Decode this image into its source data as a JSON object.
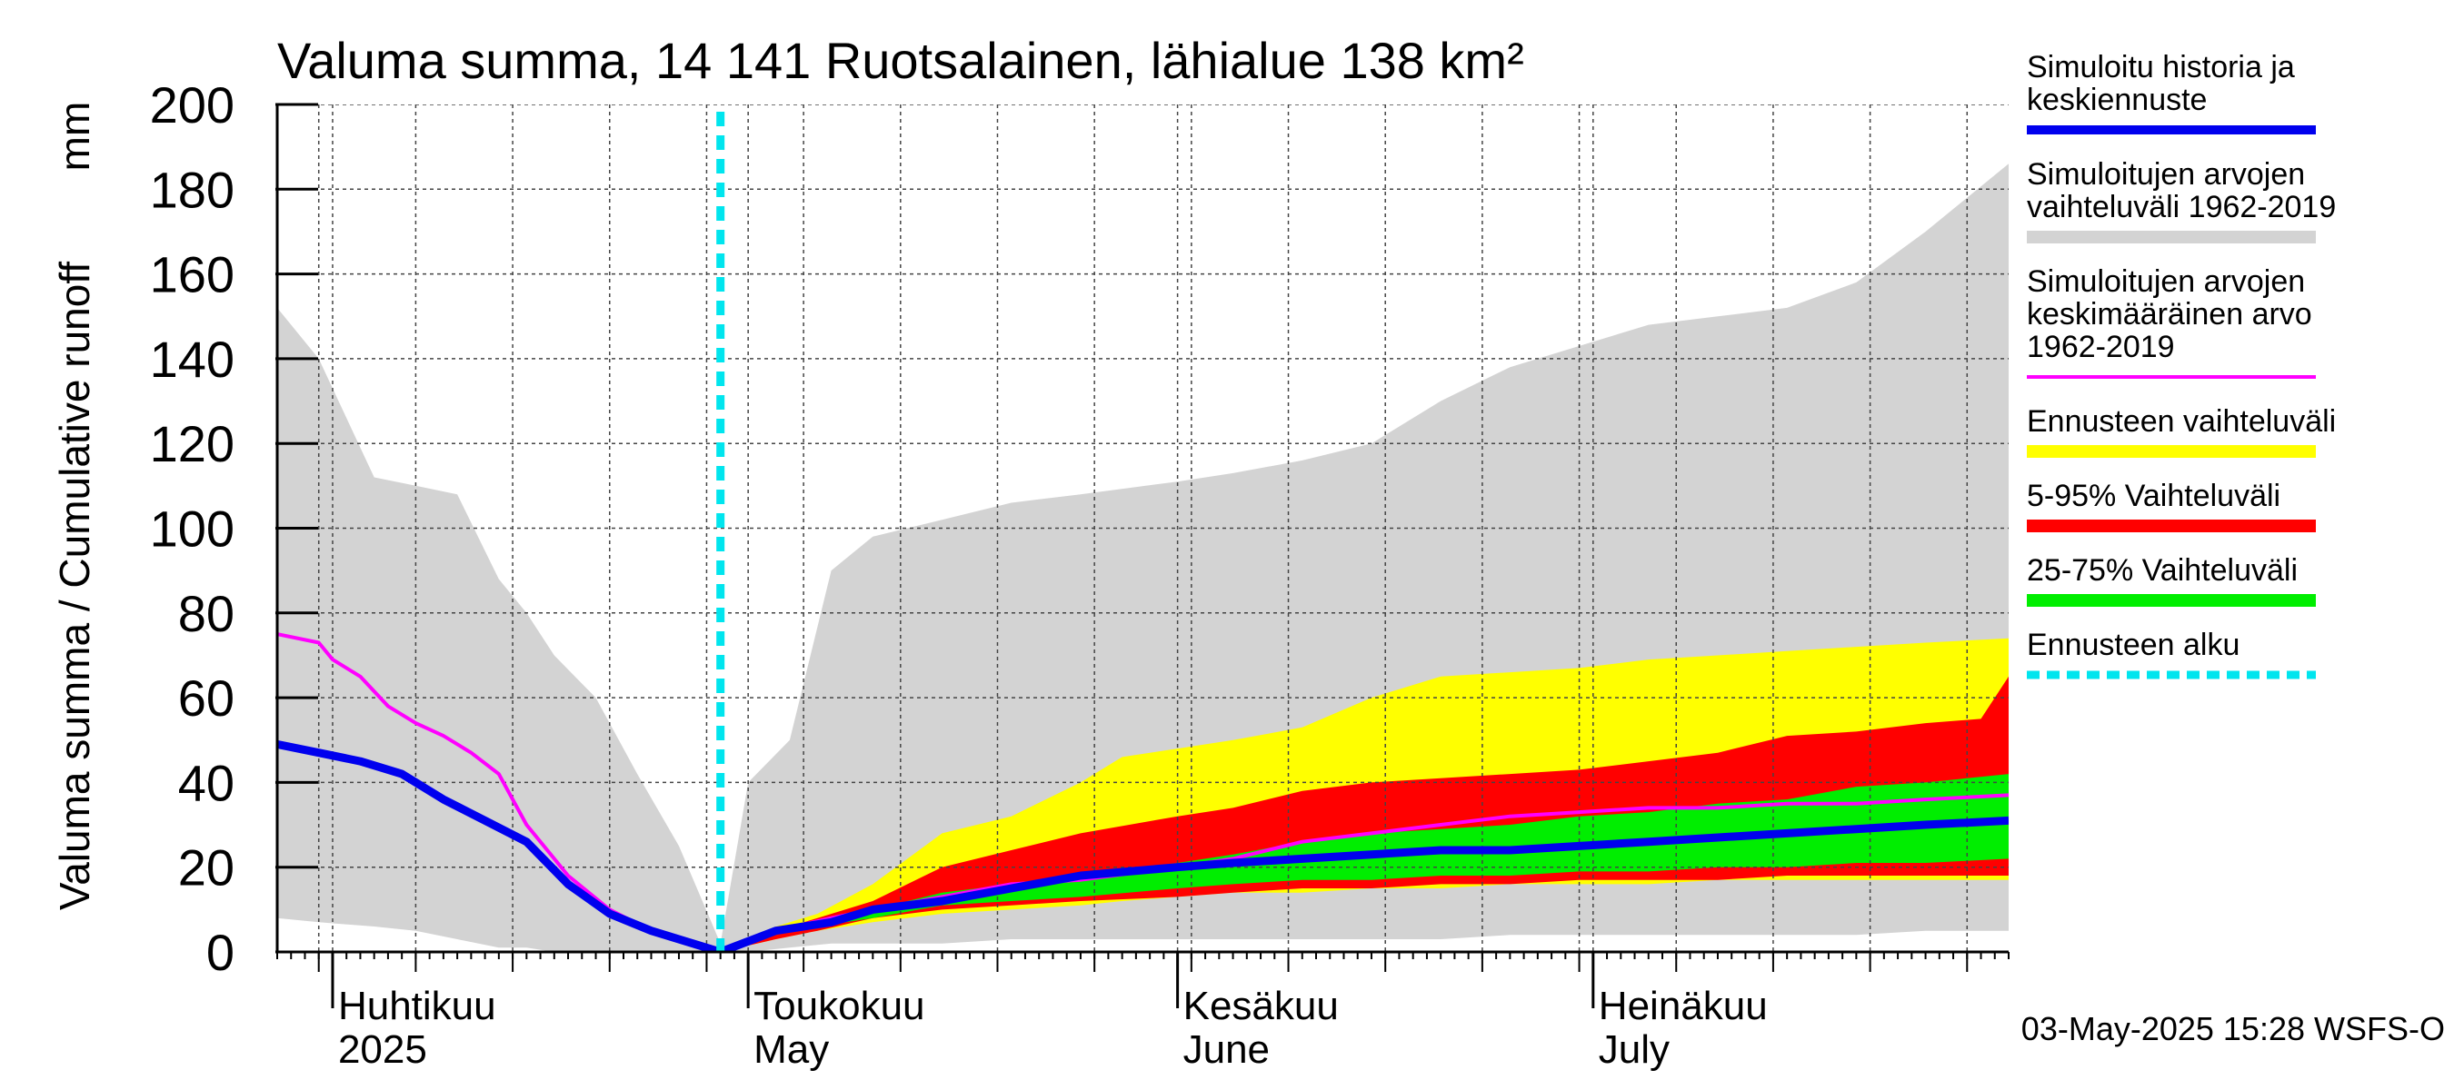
{
  "chart_data": {
    "type": "area",
    "title": "Valuma summa, 14 141 Ruotsalainen, lähialue 138 km²",
    "ylabel_left": "Valuma summa / Cumulative runoff",
    "ylabel_unit": "mm",
    "ylim": [
      0,
      200
    ],
    "yticks": [
      0,
      20,
      40,
      60,
      80,
      100,
      120,
      140,
      160,
      180,
      200
    ],
    "xlim": [
      "2025-03-28",
      "2025-07-31"
    ],
    "month_labels": [
      {
        "date": "2025-04-01",
        "line1": "Huhtikuu",
        "line2": "2025"
      },
      {
        "date": "2025-05-01",
        "line1": "Toukokuu",
        "line2": "May"
      },
      {
        "date": "2025-06-01",
        "line1": "Kesäkuu",
        "line2": "June"
      },
      {
        "date": "2025-07-01",
        "line1": "Heinäkuu",
        "line2": "July"
      }
    ],
    "forecast_start": "2025-04-29",
    "footer": "03-May-2025 15:28 WSFS-O",
    "grid": true,
    "legend_position": "right",
    "legend": [
      {
        "label": "Simuloitu historia ja\nkeskiennuste",
        "color": "#0000ee",
        "style": "thick"
      },
      {
        "label": "Simuloitujen arvojen\nvaihteluväli 1962-2019",
        "color": "#d3d3d3",
        "style": "band"
      },
      {
        "label": "Simuloitujen arvojen\nkeskimääräinen arvo\n   1962-2019",
        "color": "#ff00ff",
        "style": "line"
      },
      {
        "label": "Ennusteen vaihteluväli",
        "color": "#ffff00",
        "style": "band"
      },
      {
        "label": "5-95% Vaihteluväli",
        "color": "#ff0000",
        "style": "band"
      },
      {
        "label": "25-75% Vaihteluväli",
        "color": "#00ee00",
        "style": "band"
      },
      {
        "label": "Ennusteen alku",
        "color": "#00e5ee",
        "style": "dashed"
      }
    ],
    "series": [
      {
        "name": "Simuloitujen arvojen vaihteluväli 1962-2019",
        "kind": "band",
        "color": "#d3d3d3",
        "x": [
          "2025-03-28",
          "2025-03-31",
          "2025-04-04",
          "2025-04-07",
          "2025-04-10",
          "2025-04-13",
          "2025-04-15",
          "2025-04-17",
          "2025-04-20",
          "2025-04-23",
          "2025-04-26",
          "2025-04-29",
          "2025-05-01",
          "2025-05-04",
          "2025-05-07",
          "2025-05-10",
          "2025-05-15",
          "2025-05-20",
          "2025-05-25",
          "2025-06-01",
          "2025-06-05",
          "2025-06-10",
          "2025-06-15",
          "2025-06-20",
          "2025-06-25",
          "2025-06-30",
          "2025-07-05",
          "2025-07-10",
          "2025-07-15",
          "2025-07-20",
          "2025-07-25",
          "2025-07-31"
        ],
        "upper": [
          152,
          140,
          112,
          110,
          108,
          88,
          80,
          70,
          60,
          42,
          25,
          2,
          40,
          50,
          90,
          98,
          102,
          106,
          108,
          111,
          113,
          116,
          120,
          130,
          138,
          143,
          148,
          150,
          152,
          158,
          170,
          186
        ],
        "lower": [
          8,
          7,
          6,
          5,
          3,
          1,
          1,
          0,
          0,
          0,
          0,
          0,
          0,
          1,
          2,
          2,
          2,
          3,
          3,
          3,
          3,
          3,
          3,
          3,
          4,
          4,
          4,
          4,
          4,
          4,
          5,
          5
        ]
      },
      {
        "name": "Ennusteen vaihteluväli",
        "kind": "band",
        "color": "#ffff00",
        "x": [
          "2025-04-29",
          "2025-05-03",
          "2025-05-06",
          "2025-05-10",
          "2025-05-15",
          "2025-05-20",
          "2025-05-25",
          "2025-05-28",
          "2025-06-01",
          "2025-06-05",
          "2025-06-10",
          "2025-06-15",
          "2025-06-20",
          "2025-06-25",
          "2025-06-30",
          "2025-07-05",
          "2025-07-10",
          "2025-07-15",
          "2025-07-20",
          "2025-07-25",
          "2025-07-31"
        ],
        "upper": [
          0,
          6,
          9,
          16,
          28,
          32,
          40,
          46,
          48,
          50,
          53,
          60,
          65,
          66,
          67,
          69,
          70,
          71,
          72,
          73,
          74
        ],
        "lower": [
          0,
          3,
          5,
          7,
          9,
          10,
          11,
          12,
          13,
          14,
          14,
          15,
          15,
          16,
          16,
          16,
          17,
          17,
          17,
          17,
          17
        ]
      },
      {
        "name": "5-95% Vaihteluväli",
        "kind": "band",
        "color": "#ff0000",
        "x": [
          "2025-04-29",
          "2025-05-03",
          "2025-05-06",
          "2025-05-10",
          "2025-05-15",
          "2025-05-20",
          "2025-05-25",
          "2025-06-01",
          "2025-06-05",
          "2025-06-10",
          "2025-06-15",
          "2025-06-20",
          "2025-06-25",
          "2025-06-30",
          "2025-07-05",
          "2025-07-10",
          "2025-07-15",
          "2025-07-20",
          "2025-07-25",
          "2025-07-29",
          "2025-07-31"
        ],
        "upper": [
          0,
          5,
          8,
          12,
          20,
          24,
          28,
          32,
          34,
          38,
          40,
          41,
          42,
          43,
          45,
          47,
          51,
          52,
          54,
          55,
          65
        ],
        "lower": [
          0,
          3,
          5,
          8,
          10,
          11,
          12,
          13,
          14,
          15,
          15,
          16,
          16,
          17,
          17,
          17,
          18,
          18,
          18,
          18,
          18
        ]
      },
      {
        "name": "25-75% Vaihteluväli",
        "kind": "band",
        "color": "#00ee00",
        "x": [
          "2025-04-29",
          "2025-05-03",
          "2025-05-06",
          "2025-05-10",
          "2025-05-15",
          "2025-05-20",
          "2025-05-25",
          "2025-06-01",
          "2025-06-05",
          "2025-06-10",
          "2025-06-15",
          "2025-06-20",
          "2025-06-25",
          "2025-06-30",
          "2025-07-05",
          "2025-07-10",
          "2025-07-15",
          "2025-07-20",
          "2025-07-25",
          "2025-07-31"
        ],
        "upper": [
          0,
          5,
          7,
          10,
          14,
          16,
          18,
          21,
          23,
          26,
          28,
          29,
          30,
          32,
          33,
          35,
          36,
          39,
          40,
          42
        ],
        "lower": [
          0,
          4,
          6,
          8,
          11,
          12,
          13,
          15,
          16,
          17,
          17,
          18,
          18,
          19,
          19,
          20,
          20,
          21,
          21,
          22
        ]
      },
      {
        "name": "Simuloitujen arvojen keskimääräinen arvo 1962-2019",
        "kind": "line",
        "color": "#ff00ff",
        "x": [
          "2025-03-28",
          "2025-03-31",
          "2025-04-01",
          "2025-04-03",
          "2025-04-05",
          "2025-04-07",
          "2025-04-09",
          "2025-04-11",
          "2025-04-13",
          "2025-04-15",
          "2025-04-18",
          "2025-04-21",
          "2025-04-24",
          "2025-04-27",
          "2025-04-29",
          "2025-05-03",
          "2025-05-07",
          "2025-05-10",
          "2025-05-15",
          "2025-05-20",
          "2025-05-25",
          "2025-06-01",
          "2025-06-05",
          "2025-06-10",
          "2025-06-15",
          "2025-06-20",
          "2025-06-25",
          "2025-06-30",
          "2025-07-05",
          "2025-07-10",
          "2025-07-15",
          "2025-07-20",
          "2025-07-25",
          "2025-07-31"
        ],
        "values": [
          75,
          73,
          69,
          65,
          58,
          54,
          51,
          47,
          42,
          30,
          18,
          10,
          5,
          2,
          0,
          5,
          8,
          10,
          13,
          16,
          17,
          20,
          22,
          26,
          28,
          30,
          32,
          33,
          34,
          34,
          35,
          35,
          36,
          37
        ]
      },
      {
        "name": "Simuloitu historia ja keskiennuste",
        "kind": "line",
        "color": "#0000ee",
        "x": [
          "2025-03-28",
          "2025-03-31",
          "2025-04-03",
          "2025-04-06",
          "2025-04-09",
          "2025-04-12",
          "2025-04-15",
          "2025-04-18",
          "2025-04-21",
          "2025-04-24",
          "2025-04-27",
          "2025-04-29",
          "2025-05-03",
          "2025-05-07",
          "2025-05-10",
          "2025-05-15",
          "2025-05-20",
          "2025-05-25",
          "2025-06-01",
          "2025-06-05",
          "2025-06-10",
          "2025-06-15",
          "2025-06-20",
          "2025-06-25",
          "2025-06-30",
          "2025-07-05",
          "2025-07-10",
          "2025-07-15",
          "2025-07-20",
          "2025-07-25",
          "2025-07-31"
        ],
        "values": [
          49,
          47,
          45,
          42,
          36,
          31,
          26,
          16,
          9,
          5,
          2,
          0,
          5,
          7,
          10,
          12,
          15,
          18,
          20,
          21,
          22,
          23,
          24,
          24,
          25,
          26,
          27,
          28,
          29,
          30,
          31
        ]
      }
    ]
  }
}
